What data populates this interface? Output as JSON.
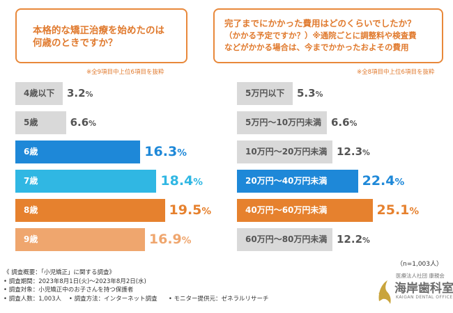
{
  "q1": {
    "line1": "本格的な矯正治療を始めたのは",
    "line2": "何歳のときですか？"
  },
  "q2": {
    "line1": "完了までにかかった費用はどのくらいでしたか？",
    "line2": "（かかる予定ですか？）※通院ごとに調整料や検査費",
    "line3": "などがかかる場合は、今までかかったおよその費用"
  },
  "note1": "※全9項目中上位6項目を抜粋",
  "note2": "※全8項目中上位6項目を抜粋",
  "sample": "（n=1,003人）",
  "survey": {
    "title": "《 調査概要：「小児矯正」に関する調査》",
    "period": "• 調査期間：2023年8月1日(火)～2023年8月2日(水)",
    "target": "• 調査対象：小児矯正中のお子さんを持つ保護者",
    "count": "• 調査人数：1,003人",
    "method": "• 調査方法：インターネット調査",
    "provider": "• モニター提供元：ゼネラルリサーチ"
  },
  "logo": {
    "corp": "医療法人社団 康親会",
    "name": "海岸歯科室",
    "en": "KAIGAN DENTAL OFFICE"
  },
  "colors": {
    "accent": "#e8883a",
    "gray": "#d9d9d9",
    "blue": "#1e88d8",
    "lightblue": "#30b7e3",
    "orange": "#e6812e",
    "lightorange": "#efa66e"
  },
  "chart_data": [
    {
      "type": "bar",
      "title": "本格的な矯正治療を始めたのは何歳のときですか？",
      "categories": [
        "4歳以下",
        "5歳",
        "6歳",
        "7歳",
        "8歳",
        "9歳"
      ],
      "values": [
        3.2,
        6.6,
        16.3,
        18.4,
        19.5,
        16.9
      ],
      "labels": [
        "3.2%",
        "6.6%",
        "16.3%",
        "18.4%",
        "19.5%",
        "16.9%"
      ],
      "unit": "%",
      "colors": [
        "#d9d9d9",
        "#d9d9d9",
        "#1e88d8",
        "#30b7e3",
        "#e6812e",
        "#efa66e"
      ]
    },
    {
      "type": "bar",
      "title": "完了までにかかった費用はどのくらいでしたか？",
      "categories": [
        "5万円以下",
        "5万円～10万円未満",
        "10万円～20万円未満",
        "20万円～40万円未満",
        "40万円～60万円未満",
        "60万円～80万円未満"
      ],
      "values": [
        5.3,
        6.6,
        12.3,
        22.4,
        25.1,
        12.2
      ],
      "labels": [
        "5.3%",
        "6.6%",
        "12.3%",
        "22.4%",
        "25.1%",
        "12.2%"
      ],
      "unit": "%",
      "colors": [
        "#d9d9d9",
        "#d9d9d9",
        "#d9d9d9",
        "#1e88d8",
        "#e6812e",
        "#d9d9d9"
      ]
    }
  ]
}
